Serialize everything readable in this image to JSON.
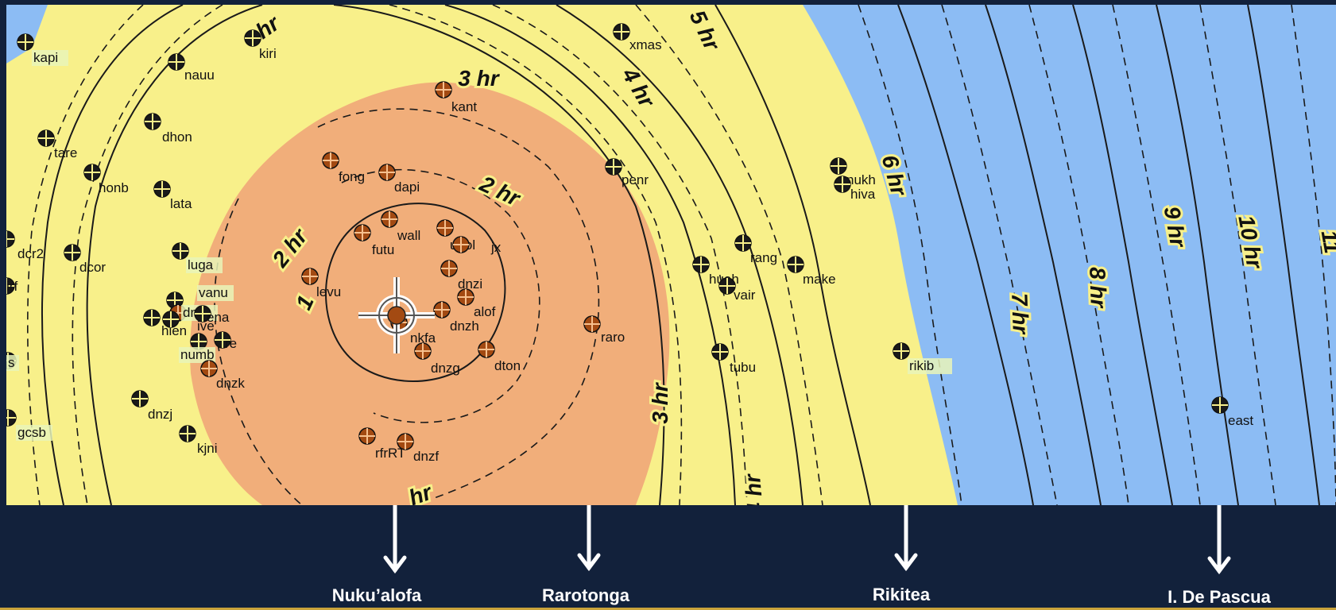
{
  "map": {
    "colors": {
      "ocean": "#8cbcf4",
      "yellow_zone": "#f8f08a",
      "orange_zone": "#f1ae7a",
      "station_marker": "#e07b22",
      "station_marker_orange_zone": "#a34a12",
      "background": "#12213b",
      "accent_line": "#c9a33a"
    },
    "contour_labels": [
      "1",
      "2 hr",
      "2 hr",
      "3 hr",
      "3 hr",
      "hr",
      "4 hr",
      "4 hr",
      "hr",
      "5 hr",
      "6 hr",
      "7 hr",
      "8 hr",
      "9 hr",
      "10 hr",
      "11"
    ],
    "stations": [
      {
        "code": "kapi"
      },
      {
        "code": "kiri"
      },
      {
        "code": "nauu"
      },
      {
        "code": "xmas"
      },
      {
        "code": "kant"
      },
      {
        "code": "dhon"
      },
      {
        "code": "tare"
      },
      {
        "code": "honb"
      },
      {
        "code": "lata"
      },
      {
        "code": "fong"
      },
      {
        "code": "dapi"
      },
      {
        "code": "penr"
      },
      {
        "code": "nukh"
      },
      {
        "code": "hiva"
      },
      {
        "code": "dcr2"
      },
      {
        "code": "dcor"
      },
      {
        "code": "luga"
      },
      {
        "code": "wall"
      },
      {
        "code": "futu"
      },
      {
        "code": "upol"
      },
      {
        "code": "jx"
      },
      {
        "code": "rang"
      },
      {
        "code": "make"
      },
      {
        "code": "irf"
      },
      {
        "code": "vanu"
      },
      {
        "code": "dnzl"
      },
      {
        "code": "ena"
      },
      {
        "code": "levu"
      },
      {
        "code": "dnzi"
      },
      {
        "code": "huah"
      },
      {
        "code": "vair"
      },
      {
        "code": "hien"
      },
      {
        "code": "ive"
      },
      {
        "code": "alof"
      },
      {
        "code": "dnzh"
      },
      {
        "code": "nkfa"
      },
      {
        "code": "raro"
      },
      {
        "code": "numb"
      },
      {
        "code": "re"
      },
      {
        "code": "dnzg"
      },
      {
        "code": "dton"
      },
      {
        "code": "tubu"
      },
      {
        "code": "rikib"
      },
      {
        "code": "s"
      },
      {
        "code": "dnzk"
      },
      {
        "code": "dnzj"
      },
      {
        "code": "gcsb"
      },
      {
        "code": "kjni"
      },
      {
        "code": "east"
      },
      {
        "code": "rfrRT"
      },
      {
        "code": "dnzf"
      }
    ],
    "epicenter_symbol": "crosshair-epicenter-icon"
  },
  "destinations": [
    {
      "name": "Nuku’alofa"
    },
    {
      "name": "Rarotonga"
    },
    {
      "name": "Rikitea"
    },
    {
      "name": "I. De Pascua"
    }
  ]
}
